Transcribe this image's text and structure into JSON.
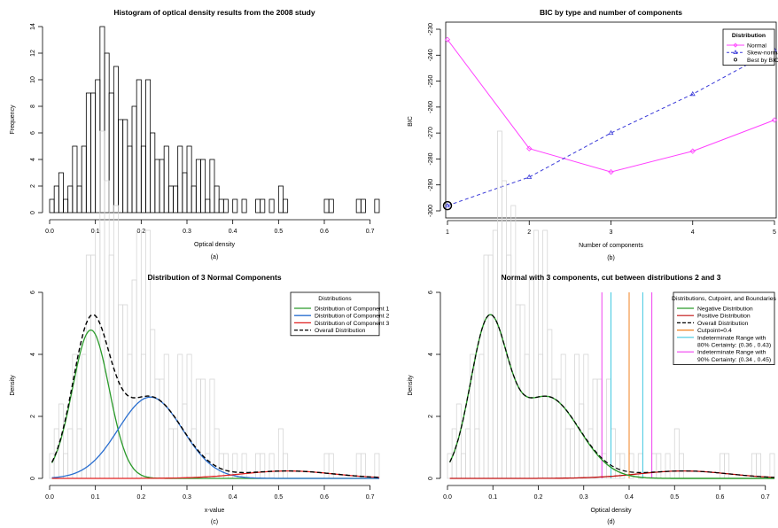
{
  "figure": {
    "background": "#ffffff",
    "colors": {
      "axis": "#000000",
      "hist_outline": "#000000",
      "hist_light": "#d6d6d6",
      "normal": "#ff40ff",
      "skew": "#3b3bd9",
      "comp1": "#2a9a2a",
      "comp2": "#2a6fd0",
      "comp3": "#e02020",
      "overall": "#000000",
      "negative": "#2a9a2a",
      "positive": "#c01010",
      "cutpoint": "#f08020",
      "range80": "#40c8e0",
      "range90": "#f040f0"
    }
  },
  "chart_data": [
    {
      "id": "a",
      "type": "bar",
      "panel_label": "(a)",
      "title": "Histogram of optical density results from the 2008 study",
      "xlabel": "Optical density",
      "ylabel": "Frequency",
      "xlim": [
        0,
        0.72
      ],
      "ylim": [
        0,
        14
      ],
      "xticks": [
        0.0,
        0.1,
        0.2,
        0.3,
        0.4,
        0.5,
        0.6,
        0.7
      ],
      "xtick_labels": [
        "0.0",
        "0.1",
        "0.2",
        "0.3",
        "0.4",
        "0.5",
        "0.6",
        "0.7"
      ],
      "yticks": [
        0,
        2,
        4,
        6,
        8,
        10,
        12,
        14
      ],
      "ytick_labels": [
        "0",
        "2",
        "4",
        "6",
        "8",
        "10",
        "12",
        "14"
      ],
      "bin_start": 0.0,
      "bin_width": 0.01,
      "values": [
        1,
        2,
        3,
        1,
        2,
        5,
        2,
        5,
        9,
        9,
        10,
        14,
        12,
        9,
        11,
        7,
        7,
        5,
        8,
        10,
        5,
        10,
        6,
        4,
        4,
        5,
        2,
        2,
        5,
        3,
        5,
        2,
        4,
        4,
        1,
        4,
        2,
        1,
        1,
        0,
        1,
        0,
        1,
        0,
        0,
        1,
        1,
        0,
        1,
        0,
        2,
        1,
        0,
        0,
        0,
        0,
        0,
        0,
        0,
        0,
        1,
        1,
        0,
        0,
        0,
        0,
        0,
        1,
        1,
        0,
        0,
        1
      ]
    },
    {
      "id": "b",
      "type": "line",
      "panel_label": "(b)",
      "title": "BIC by type and number of components",
      "xlabel": "Number of components",
      "ylabel": "BIC",
      "xlim": [
        1,
        5
      ],
      "ylim": [
        -300,
        -230
      ],
      "xticks": [
        1,
        2,
        3,
        4,
        5
      ],
      "xtick_labels": [
        "1",
        "2",
        "3",
        "4",
        "5"
      ],
      "yticks": [
        -300,
        -290,
        -280,
        -270,
        -260,
        -250,
        -240,
        -230
      ],
      "ytick_labels": [
        "-300",
        "-290",
        "-280",
        "-270",
        "-260",
        "-250",
        "-240",
        "-230"
      ],
      "legend": {
        "title": "Distribution",
        "placement": "top-right",
        "entries": [
          "Normal",
          "Skew-normal",
          "Best by BIC"
        ]
      },
      "x": [
        1,
        2,
        3,
        4,
        5
      ],
      "series": [
        {
          "name": "Normal",
          "values": [
            -234,
            -276,
            -285,
            -277,
            -265
          ],
          "style": "solid",
          "marker": "open-diamond"
        },
        {
          "name": "Skew-normal",
          "values": [
            -298,
            -287,
            -270,
            -255,
            -238
          ],
          "style": "dashed",
          "marker": "triangle"
        }
      ],
      "best": {
        "x": 1,
        "y": -298
      }
    },
    {
      "id": "c",
      "type": "line",
      "panel_label": "(c)",
      "title": "Distribution of 3 Normal Components",
      "xlabel": "x-value",
      "ylabel": "Density",
      "xlim": [
        0,
        0.72
      ],
      "ylim": [
        0,
        6
      ],
      "xticks": [
        0.0,
        0.1,
        0.2,
        0.3,
        0.4,
        0.5,
        0.6,
        0.7
      ],
      "xtick_labels": [
        "0.0",
        "0.1",
        "0.2",
        "0.3",
        "0.4",
        "0.5",
        "0.6",
        "0.7"
      ],
      "yticks": [
        0,
        2,
        4,
        6
      ],
      "ytick_labels": [
        "0",
        "2",
        "4",
        "6"
      ],
      "hist_density_scale": 0.8,
      "legend": {
        "title": "Distributions",
        "placement": "top-right",
        "entries": [
          "Distribution of Component 1",
          "Distribution of Component 2",
          "Distribution of Component 3",
          "Overall Distribution"
        ]
      },
      "components": [
        {
          "name": "Distribution of Component 1",
          "weight": 0.48,
          "mean": 0.09,
          "sd": 0.04
        },
        {
          "name": "Distribution of Component 2",
          "weight": 0.46,
          "mean": 0.22,
          "sd": 0.07
        },
        {
          "name": "Distribution of Component 3",
          "weight": 0.06,
          "mean": 0.52,
          "sd": 0.1
        }
      ]
    },
    {
      "id": "d",
      "type": "line",
      "panel_label": "(d)",
      "title": "Normal with 3 components, cut between distributions 2 and 3",
      "xlabel": "Optical density",
      "ylabel": "Density",
      "xlim": [
        0,
        0.72
      ],
      "ylim": [
        0,
        6
      ],
      "xticks": [
        0.0,
        0.1,
        0.2,
        0.3,
        0.4,
        0.5,
        0.6,
        0.7
      ],
      "xtick_labels": [
        "0.0",
        "0.1",
        "0.2",
        "0.3",
        "0.4",
        "0.5",
        "0.6",
        "0.7"
      ],
      "yticks": [
        0,
        2,
        4,
        6
      ],
      "ytick_labels": [
        "0",
        "2",
        "4",
        "6"
      ],
      "legend": {
        "title": "Distributions, Cutpoint, and Boundaries",
        "placement": "top-right",
        "entries": [
          "Negative Distribution",
          "Positive Distribution",
          "Overall Distribution",
          "Cutpoint=0.4",
          "Indeterminate Range with",
          "80% Certainty: (0.36 , 0.43)",
          "Indeterminate Range with",
          "90% Certainty: (0.34 , 0.45)"
        ]
      },
      "cutpoint": 0.4,
      "range80": [
        0.36,
        0.43
      ],
      "range90": [
        0.34,
        0.45
      ],
      "series": [
        {
          "name": "Negative Distribution",
          "components": [
            1,
            2
          ]
        },
        {
          "name": "Positive Distribution",
          "components": [
            3
          ]
        },
        {
          "name": "Overall Distribution",
          "components": [
            1,
            2,
            3
          ]
        }
      ]
    }
  ]
}
